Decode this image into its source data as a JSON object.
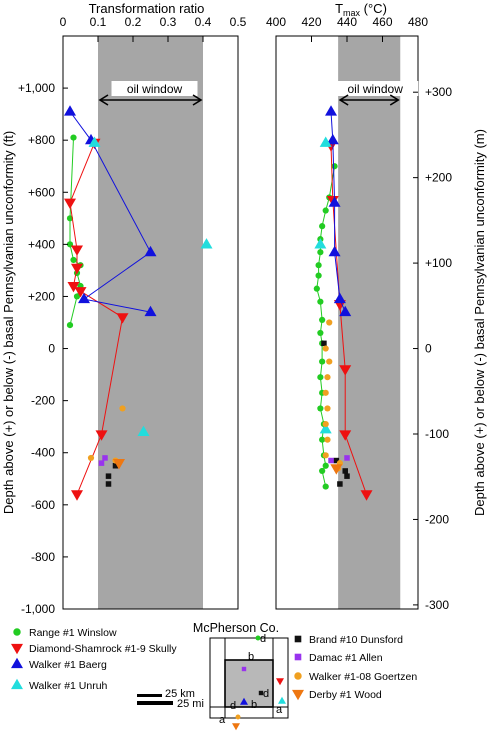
{
  "chart_data": {
    "type": "scatter",
    "panels": [
      {
        "xlabel": "Transformation ratio",
        "xlim": [
          0,
          0.5
        ],
        "xticks": [
          "0",
          "0.1",
          "0.2",
          "0.3",
          "0.4",
          "0.5"
        ],
        "window_label": "oil window",
        "window_range": [
          0.1,
          0.4
        ]
      },
      {
        "xlabel_main": "T",
        "xlabel_sub": "max",
        "xlabel_unit": " (°C)",
        "xlim": [
          400,
          480
        ],
        "xticks": [
          "400",
          "420",
          "440",
          "460",
          "480"
        ],
        "window_label": "oil window",
        "window_range": [
          435,
          470
        ]
      }
    ],
    "ylabel_left": "Depth above (+) or below (-) basal Pennsylvanian unconformity (ft)",
    "ylabel_right": "Depth above (+) or below (-) basal Pennsylvanian unconformity (m)",
    "ylim_ft": [
      -1000,
      1200
    ],
    "yticks_ft": [
      "+1,000",
      "+800",
      "+600",
      "+400",
      "+200",
      "0",
      "-200",
      "-400",
      "-600",
      "-800",
      "-1,000"
    ],
    "yticks_m": [
      "+300",
      "+200",
      "+100",
      "0",
      "-100",
      "-200",
      "-300"
    ],
    "series": [
      {
        "name": "Range #1 Winslow",
        "marker": "circle",
        "color": "#22cc22",
        "connected": true,
        "tr": [
          [
            0.03,
            810
          ],
          [
            0.02,
            500
          ],
          [
            0.02,
            400
          ],
          [
            0.03,
            340
          ],
          [
            0.05,
            320
          ],
          [
            0.04,
            290
          ],
          [
            0.05,
            240
          ],
          [
            0.04,
            200
          ],
          [
            0.02,
            90
          ]
        ],
        "tmax": [
          [
            433,
            700
          ],
          [
            430,
            580
          ],
          [
            428,
            530
          ],
          [
            426,
            470
          ],
          [
            425,
            420
          ],
          [
            425,
            370
          ],
          [
            424,
            320
          ],
          [
            424,
            280
          ],
          [
            423,
            230
          ],
          [
            425,
            180
          ],
          [
            426,
            110
          ],
          [
            425,
            60
          ],
          [
            426,
            20
          ],
          [
            426,
            -50
          ],
          [
            425,
            -110
          ],
          [
            426,
            -170
          ],
          [
            425,
            -230
          ],
          [
            427,
            -290
          ],
          [
            426,
            -350
          ],
          [
            427,
            -410
          ],
          [
            428,
            -450
          ],
          [
            426,
            -470
          ],
          [
            428,
            -530
          ]
        ]
      },
      {
        "name": "Diamond-Shamrock #1-9 Skully",
        "marker": "triangle-down",
        "color": "#ee1111",
        "connected": true,
        "tr": [
          [
            0.09,
            790
          ],
          [
            0.02,
            560
          ],
          [
            0.04,
            380
          ],
          [
            0.04,
            310
          ],
          [
            0.03,
            240
          ],
          [
            0.05,
            220
          ],
          [
            0.17,
            120
          ],
          [
            0.11,
            -330
          ],
          [
            0.04,
            -560
          ]
        ],
        "tmax": [
          [
            431,
            780
          ],
          [
            432,
            570
          ],
          [
            436,
            170
          ],
          [
            439,
            -80
          ],
          [
            439,
            -330
          ],
          [
            451,
            -560
          ]
        ]
      },
      {
        "name": "Walker #1 Baerg",
        "marker": "triangle-up",
        "color": "#1111dd",
        "connected": true,
        "tr": [
          [
            0.02,
            910
          ],
          [
            0.08,
            800
          ],
          [
            0.25,
            370
          ],
          [
            0.06,
            190
          ],
          [
            0.25,
            140
          ]
        ],
        "tmax": [
          [
            431,
            910
          ],
          [
            432,
            800
          ],
          [
            433,
            560
          ],
          [
            433,
            370
          ],
          [
            436,
            190
          ],
          [
            439,
            140
          ]
        ]
      },
      {
        "name": "Walker #1 Unruh",
        "marker": "triangle-up",
        "color": "#22dddd",
        "connected": false,
        "tr": [
          [
            0.09,
            790
          ],
          [
            0.41,
            400
          ],
          [
            0.23,
            -320
          ]
        ],
        "tmax": [
          [
            428,
            790
          ],
          [
            425,
            400
          ],
          [
            428,
            -310
          ]
        ]
      },
      {
        "name": "Brand #10 Dunsford",
        "marker": "square",
        "color": "#111111",
        "connected": false,
        "tr": [
          [
            0.15,
            -450
          ],
          [
            0.13,
            -490
          ],
          [
            0.13,
            -520
          ]
        ],
        "tmax": [
          [
            427,
            20
          ],
          [
            434,
            -430
          ],
          [
            439,
            -470
          ],
          [
            440,
            -490
          ],
          [
            436,
            -520
          ]
        ]
      },
      {
        "name": "Damac #1 Allen",
        "marker": "square",
        "color": "#9933ee",
        "connected": false,
        "tr": [
          [
            0.12,
            -420
          ],
          [
            0.11,
            -440
          ]
        ],
        "tmax": [
          [
            431,
            -430
          ],
          [
            440,
            -420
          ]
        ]
      },
      {
        "name": "Walker #1-08 Goertzen",
        "marker": "circle",
        "color": "#f0a020",
        "connected": false,
        "tr": [
          [
            0.17,
            -230
          ],
          [
            0.08,
            -420
          ],
          [
            0.15,
            -430
          ]
        ],
        "tmax": [
          [
            430,
            100
          ],
          [
            428,
            0
          ],
          [
            430,
            -50
          ],
          [
            429,
            -110
          ],
          [
            428,
            -170
          ],
          [
            429,
            -230
          ],
          [
            428,
            -290
          ],
          [
            429,
            -350
          ],
          [
            428,
            -410
          ],
          [
            436,
            -440
          ],
          [
            435,
            -460
          ]
        ]
      },
      {
        "name": "Derby #1 Wood",
        "marker": "triangle-down",
        "color": "#ee7711",
        "connected": false,
        "tr": [
          [
            0.16,
            -440
          ]
        ],
        "tmax": [
          [
            434,
            -460
          ]
        ]
      }
    ],
    "legend_left": [
      "Range #1 Winslow",
      "Diamond-Shamrock #1-9 Skully",
      "Walker #1 Baerg",
      "Walker #1 Unruh"
    ],
    "legend_right": [
      "Brand #10 Dunsford",
      "Damac #1 Allen",
      "Walker #1-08 Goertzen",
      "Derby #1 Wood"
    ],
    "inset": {
      "title": "McPherson Co.",
      "letters": [
        "d",
        "b",
        "d",
        "b",
        "a",
        "d",
        "a"
      ],
      "scale_km": "25 km",
      "scale_mi": "25 mi"
    }
  }
}
